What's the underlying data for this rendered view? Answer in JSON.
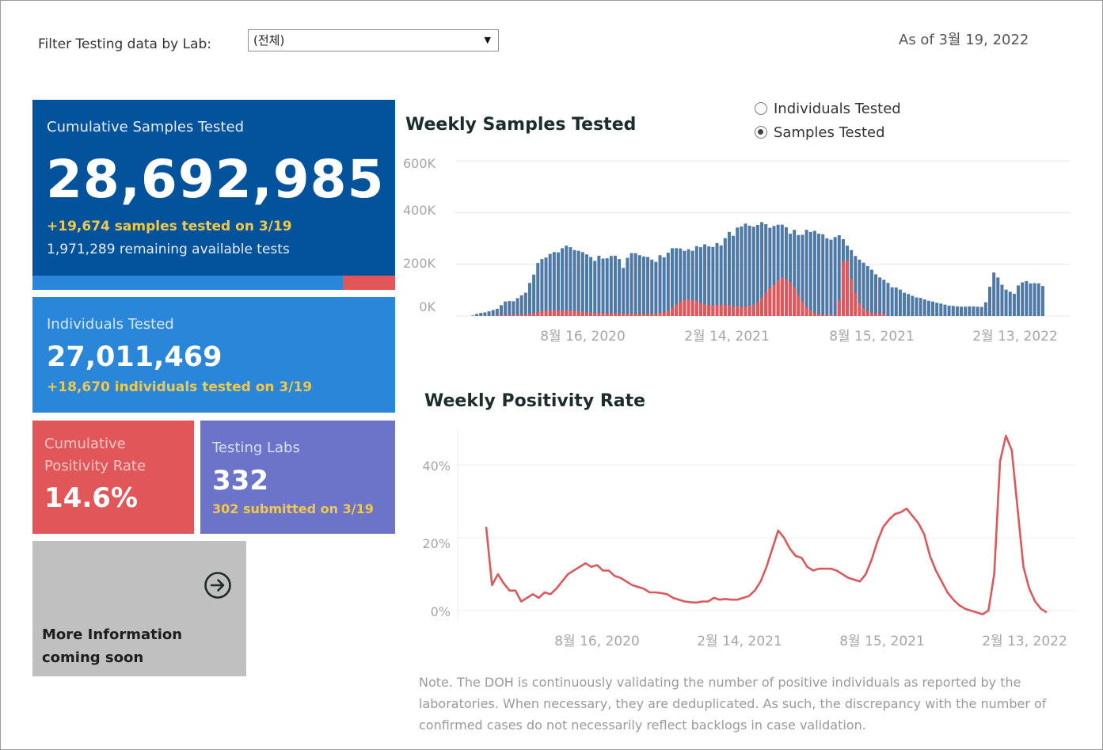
{
  "filter": {
    "label": "Filter Testing data by Lab:",
    "selected": "(전체)"
  },
  "as_of": "As of 3월 19, 2022",
  "cumulative": {
    "title": "Cumulative Samples Tested",
    "value": "28,692,985",
    "today": "+19,674 samples tested on 3/19",
    "remaining": "1,971,289 remaining available tests",
    "used_fraction": 0.856
  },
  "individuals": {
    "title": "Individuals Tested",
    "value": "27,011,469",
    "today": "+18,670  individuals  tested on 3/19"
  },
  "positivity": {
    "title": "Cumulative Positivity Rate",
    "value": "14.6%"
  },
  "labs": {
    "title": "Testing Labs",
    "value": "332",
    "today": "302 submitted on 3/19"
  },
  "more_info": {
    "line1": "More Information",
    "line2": "coming soon",
    "icon": "arrow-circle-right-icon"
  },
  "toggle": {
    "options": [
      {
        "label": "Individuals Tested",
        "selected": false
      },
      {
        "label": "Samples Tested",
        "selected": true
      }
    ]
  },
  "note": "Note. The DOH is continuously validating the number of positive individuals as reported by the laboratories. When necessary, they are deduplicated. As such, the discrepancy with the number of confirmed cases do not necessarily reflect backlogs in case validation.",
  "colors": {
    "negative": "#4e79a7",
    "positive": "#e15759",
    "line": "#d95a5c"
  },
  "chart_data": [
    {
      "type": "bar",
      "stacked": true,
      "title": "Weekly Samples Tested",
      "y_ticks": [
        "0K",
        "200K",
        "400K",
        "600K"
      ],
      "x_ticks": [
        "8월 16, 2020",
        "2월 14, 2021",
        "8월 15, 2021",
        "2월 13, 2022"
      ],
      "ylim": [
        0,
        600000
      ],
      "series": [
        {
          "values": [
            2000,
            8000,
            12000,
            14000,
            18000,
            23000,
            28000,
            42000,
            56000,
            58000,
            57000,
            69000,
            80000,
            90000,
            128000,
            160000,
            205000,
            220000,
            226000,
            240000,
            247000,
            246000,
            262000,
            272000,
            266000,
            255000,
            252000,
            247000,
            238000,
            228000,
            213000,
            233000,
            222000,
            223000,
            232000,
            233000,
            220000,
            186000,
            225000,
            243000,
            243000,
            235000,
            230000,
            228000,
            218000,
            209000,
            235000,
            227000,
            245000,
            262000,
            262000,
            261000,
            252000,
            258000,
            252000,
            270000,
            266000,
            277000,
            269000,
            267000,
            282000,
            273000,
            301000,
            325000,
            310000,
            342000,
            346000,
            357000,
            349000,
            345000,
            352000,
            363000,
            355000,
            341000,
            348000,
            353000,
            353000,
            343000,
            318000,
            333000,
            313000,
            314000,
            333000,
            325000,
            329000,
            318000,
            316000,
            300000,
            295000,
            305000,
            312000,
            297000,
            272000,
            255000,
            232000,
            218000,
            206000,
            193000,
            179000,
            161000,
            149000,
            140000,
            128000,
            111000,
            110000,
            102000,
            90000,
            85000,
            78000,
            72000,
            70000,
            64000,
            59000,
            56000,
            51000,
            48000,
            44000,
            40000,
            39000,
            37000,
            36000,
            36000,
            37000,
            37000,
            36000,
            35000,
            53000,
            113000,
            168000,
            149000,
            121000,
            102000,
            94000,
            86000,
            118000,
            130000,
            135000,
            126000,
            127000,
            126000,
            116000
          ],
          "name": ""
        },
        {
          "values": [
            0,
            0,
            1000,
            1000,
            1000,
            1500,
            2000,
            2000,
            3000,
            4000,
            3000,
            5000,
            5000,
            6000,
            10000,
            12000,
            15000,
            18000,
            18000,
            20000,
            22000,
            20000,
            22000,
            22000,
            20000,
            18000,
            17000,
            16000,
            14000,
            13000,
            12000,
            12000,
            11000,
            11000,
            12000,
            10000,
            9000,
            8000,
            9000,
            9000,
            9000,
            9000,
            8000,
            9000,
            9000,
            10000,
            12000,
            14000,
            20000,
            30000,
            45000,
            55000,
            62000,
            62000,
            60000,
            58000,
            50000,
            45000,
            42000,
            42000,
            42000,
            43000,
            43000,
            42000,
            38000,
            38000,
            36000,
            35000,
            40000,
            44000,
            52000,
            70000,
            90000,
            108000,
            120000,
            138000,
            148000,
            143000,
            130000,
            110000,
            80000,
            55000,
            35000,
            22000,
            12000,
            8000,
            5000,
            4000,
            4000,
            3000,
            60000,
            212000,
            213000,
            144000,
            90000,
            50000,
            30000,
            18000,
            12000,
            10000,
            10000,
            10000
          ],
          "name": ""
        }
      ]
    },
    {
      "type": "line",
      "title": "Weekly Positivity Rate",
      "y_ticks": [
        "0%",
        "20%",
        "40%"
      ],
      "x_ticks": [
        "8월 16, 2020",
        "2월 14, 2021",
        "8월 15, 2021",
        "2월 13, 2022"
      ],
      "ylim": [
        0,
        50
      ],
      "series": [
        {
          "values": [
            23,
            7,
            10,
            7.5,
            5.5,
            5.5,
            2.5,
            3.5,
            4.5,
            3.5,
            5,
            4.5,
            6,
            8,
            10,
            11,
            12,
            13,
            12,
            12.5,
            11,
            11,
            9.5,
            9,
            8,
            7,
            6.5,
            6,
            5,
            5,
            4.8,
            4.5,
            3.5,
            3,
            2.5,
            2.3,
            2.2,
            2.5,
            2.5,
            3.5,
            3,
            3.2,
            3,
            3,
            3.5,
            4,
            5.5,
            8,
            12,
            17,
            22,
            20,
            17,
            15,
            14.5,
            12,
            11,
            11.5,
            11.5,
            11.5,
            11,
            10,
            9,
            8.5,
            8,
            10,
            14,
            19,
            23,
            25,
            26.5,
            27,
            28,
            26,
            24,
            21,
            15,
            11,
            8,
            5,
            3,
            1.5,
            0.5,
            0,
            -0.5,
            -1,
            0,
            10,
            41,
            48,
            44,
            28,
            12,
            6,
            2.5,
            0.5,
            -0.5
          ],
          "name": ""
        }
      ]
    }
  ]
}
